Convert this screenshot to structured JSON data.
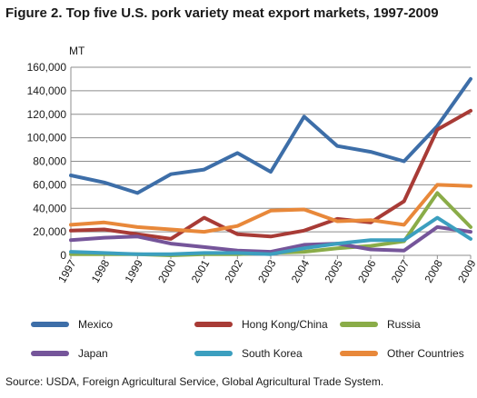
{
  "title": "Figure 2. Top five U.S. pork variety meat export markets, 1997-2009",
  "source": "Source: USDA, Foreign Agricultural Service, Global Agricultural Trade System.",
  "chart_data": {
    "type": "line",
    "title": "Figure 2. Top five U.S. pork variety meat export markets, 1997-2009",
    "ylabel": "MT",
    "xlabel": "",
    "ylim": [
      0,
      160000
    ],
    "yticks": [
      0,
      20000,
      40000,
      60000,
      80000,
      100000,
      120000,
      140000,
      160000
    ],
    "ytick_labels": [
      "0",
      "20,000",
      "40,000",
      "60,000",
      "80,000",
      "100,000",
      "120,000",
      "140,000",
      "160,000"
    ],
    "categories": [
      "1997",
      "1998",
      "1999",
      "2000",
      "2001",
      "2002",
      "2003",
      "2004",
      "2005",
      "2006",
      "2007",
      "2008",
      "2009"
    ],
    "grid": true,
    "legend_position": "bottom",
    "series": [
      {
        "name": "Mexico",
        "color": "#3d6ea8",
        "values": [
          68000,
          62000,
          53000,
          69000,
          73000,
          87000,
          71000,
          118000,
          93000,
          88000,
          80000,
          110000,
          150000
        ]
      },
      {
        "name": "Hong Kong/China",
        "color": "#a83b36",
        "values": [
          21000,
          22000,
          18000,
          14000,
          32000,
          18000,
          16000,
          21000,
          31000,
          28000,
          46000,
          107000,
          123000
        ]
      },
      {
        "name": "Russia",
        "color": "#8aac48",
        "values": [
          1000,
          1000,
          1000,
          0,
          1000,
          1000,
          2000,
          3000,
          6000,
          8000,
          12000,
          53000,
          24000
        ]
      },
      {
        "name": "Japan",
        "color": "#75559a",
        "values": [
          13000,
          15000,
          16000,
          10000,
          7000,
          4000,
          3000,
          9000,
          10000,
          5000,
          4000,
          24000,
          20000
        ]
      },
      {
        "name": "South Korea",
        "color": "#3c9fbf",
        "values": [
          3000,
          2000,
          1000,
          1000,
          2000,
          2000,
          1000,
          6000,
          10000,
          13000,
          13000,
          32000,
          14000
        ]
      },
      {
        "name": "Other Countries",
        "color": "#e8883a",
        "values": [
          26000,
          28000,
          24000,
          22000,
          20000,
          25000,
          38000,
          39000,
          29000,
          30000,
          26000,
          60000,
          59000
        ]
      }
    ]
  }
}
